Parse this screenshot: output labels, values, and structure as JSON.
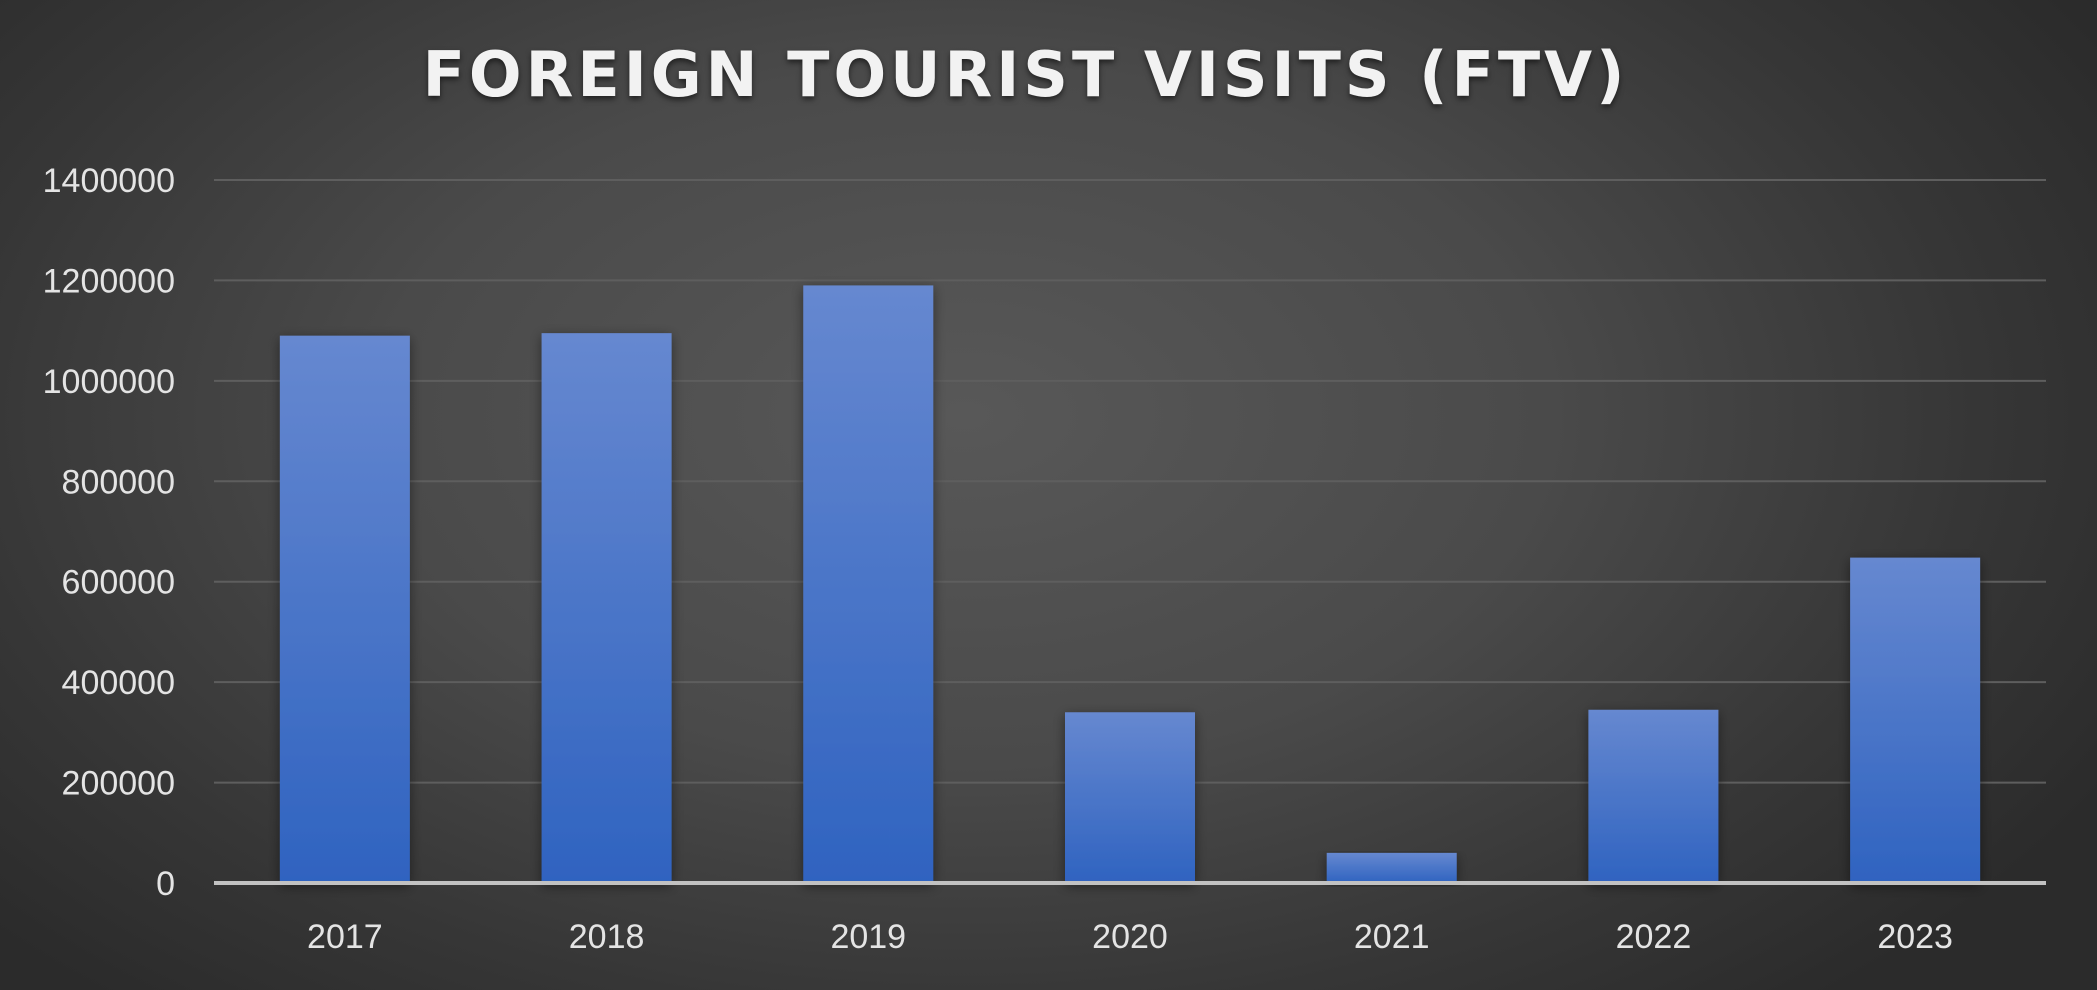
{
  "chart_data": {
    "type": "bar",
    "title": "FOREIGN TOURIST VISITS (FTV)",
    "xlabel": "",
    "ylabel": "",
    "categories": [
      "2017",
      "2018",
      "2019",
      "2020",
      "2021",
      "2022",
      "2023"
    ],
    "values": [
      1090000,
      1095000,
      1190000,
      340000,
      60000,
      345000,
      648000
    ],
    "ylim": [
      0,
      1400000
    ],
    "yticks": [
      0,
      200000,
      400000,
      600000,
      800000,
      1000000,
      1200000,
      1400000
    ],
    "ytick_labels": [
      "0",
      "200000",
      "400000",
      "600000",
      "800000",
      "1000000",
      "1200000",
      "1400000"
    ],
    "grid": true,
    "legend": "none",
    "colors": {
      "bar_top": "#6688d0",
      "bar_bottom": "#2f63c0",
      "gridline": "#5e5e5e",
      "axis": "#c2c2c2",
      "text": "#e4e4e4"
    }
  }
}
